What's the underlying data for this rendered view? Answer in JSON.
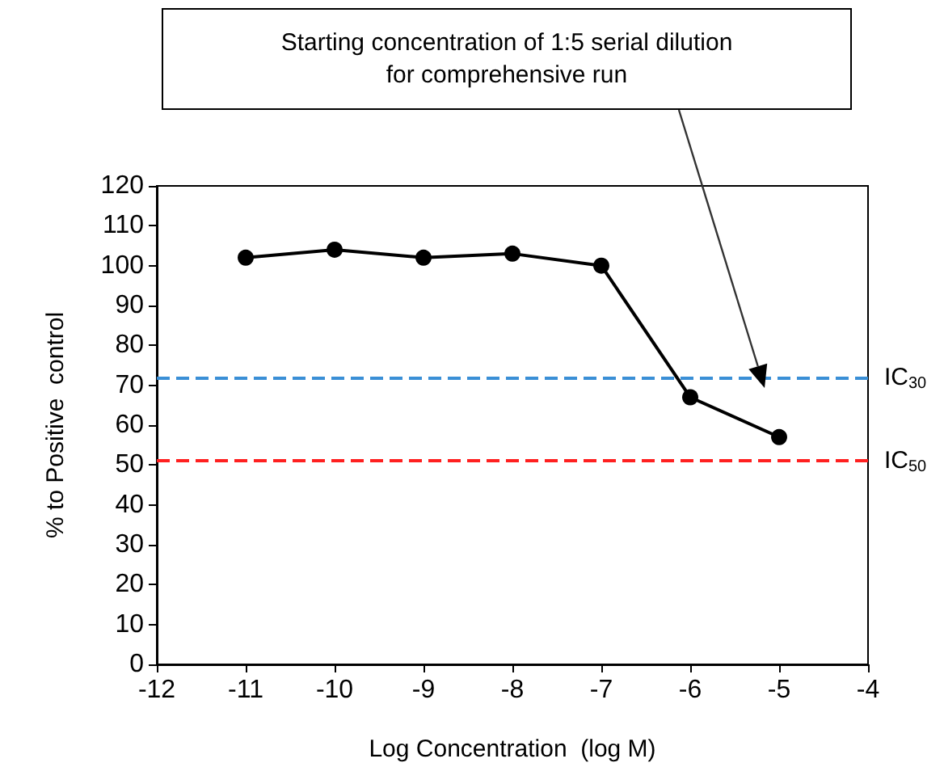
{
  "chart_data": {
    "type": "line",
    "xlabel": "Log Concentration  (log M)",
    "ylabel": "% to Positive  control",
    "x": [
      -11,
      -10,
      -9,
      -8,
      -7,
      -6,
      -5
    ],
    "series": [
      {
        "color": "#000000",
        "values": [
          102,
          104,
          102,
          103,
          100,
          67,
          57
        ]
      }
    ],
    "xlim": [
      -12,
      -4
    ],
    "xticks": [
      -12,
      -11,
      -10,
      -9,
      -8,
      -7,
      -6,
      -5,
      -4
    ],
    "ylim": [
      0,
      120
    ],
    "yticks": [
      0,
      10,
      20,
      30,
      40,
      50,
      60,
      70,
      80,
      90,
      100,
      110,
      120
    ],
    "grid": false,
    "marker": "circle",
    "line_style": "solid",
    "ref_lines": [
      {
        "axis": "y",
        "value": 72,
        "label": "IC$_{30}$",
        "color": "#3a8fd6",
        "line_style": "dashed"
      },
      {
        "axis": "y",
        "value": 51,
        "label": "IC$_{50}$",
        "color": "#ff2020",
        "line_style": "dashed"
      }
    ],
    "annotations": [
      "Starting concentration of 1:5 serial dilution\nfor comprehensive run"
    ]
  }
}
